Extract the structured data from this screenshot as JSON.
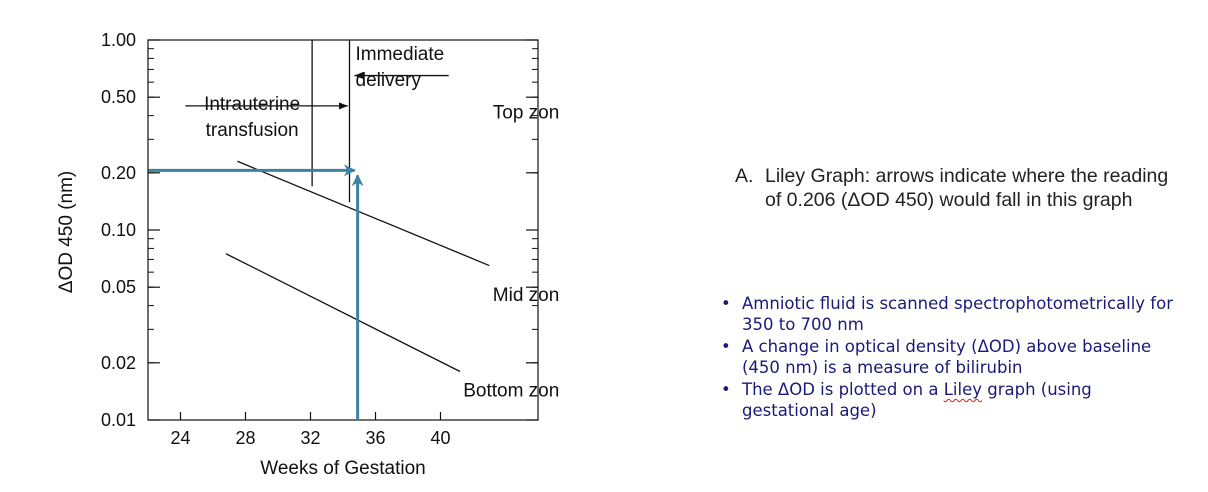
{
  "chart_data": {
    "type": "line",
    "xlabel": "Weeks of Gestation",
    "ylabel": "ΔOD 450 (nm)",
    "yscale": "log",
    "xlim": [
      22,
      46
    ],
    "ylim": [
      0.01,
      1.0
    ],
    "x_ticks": [
      24,
      28,
      32,
      36,
      40
    ],
    "y_ticks": [
      1.0,
      0.5,
      0.2,
      0.1,
      0.05,
      0.02,
      0.01
    ],
    "y_tick_labels": [
      "1.00",
      "0.50",
      "0.20",
      "0.10",
      "0.05",
      "0.02",
      "0.01"
    ],
    "series": [
      {
        "x": [
          27.5,
          43
        ],
        "y": [
          0.23,
          0.065
        ]
      },
      {
        "x": [
          26.8,
          41.2
        ],
        "y": [
          0.075,
          0.018
        ]
      }
    ],
    "zone_boundaries": [
      {
        "label_lines": [
          "Intrauterine",
          "transfusion"
        ],
        "x": 32.1,
        "y_range": [
          0.17,
          1.0
        ],
        "arrow_from_x": 24.3,
        "arrow_to_x": 34.3,
        "arrow_y": 0.45
      },
      {
        "label_lines": [
          "Immediate",
          "delivery"
        ],
        "x": 34.4,
        "y_range": [
          0.14,
          1.0
        ],
        "arrow_from_x": 40.5,
        "arrow_to_x": 34.7,
        "arrow_y": 0.65
      }
    ],
    "zone_labels": [
      {
        "text": "Top zone",
        "x": 42.3,
        "y": 0.42
      },
      {
        "text": "Mid zone",
        "x": 42.3,
        "y": 0.046
      },
      {
        "text": "Bottom zone",
        "x": 42.3,
        "y": 0.0145
      }
    ],
    "reading": {
      "value": 0.206,
      "week": 34.9,
      "color": "#3c83a3"
    }
  },
  "caption": {
    "letter": "A.",
    "text": "Liley Graph: arrows indicate where the reading of 0.206 (ΔOD 450) would fall in this graph"
  },
  "bullets": [
    {
      "text": "Amniotic fluid is scanned spectrophotometrically for 350 to 700 nm"
    },
    {
      "text": "A change in optical density (ΔOD) above baseline (450 nm) is a measure of bilirubin"
    },
    {
      "before": "The ΔOD is plotted on a ",
      "highlight": "Liley",
      "after": " graph (using gestational age)"
    }
  ],
  "colors": {
    "axis": "#111111",
    "reading_arrow": "#3c83a3",
    "bullet_text": "#1a1a7a",
    "spellcheck": "#d02020"
  }
}
